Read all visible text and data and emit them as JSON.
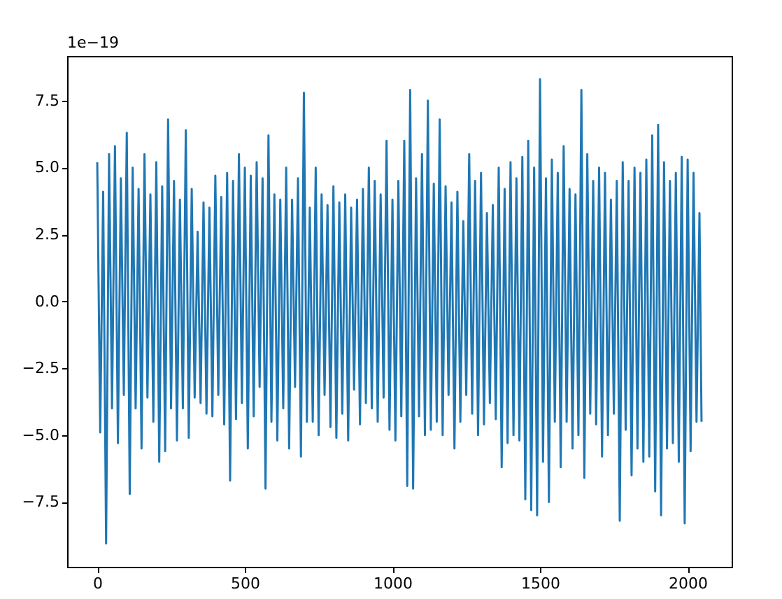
{
  "chart_data": {
    "type": "line",
    "grid": false,
    "marker": "none",
    "line_style": "solid",
    "xlim": [
      -102,
      2149
    ],
    "ylim": [
      -9.92,
      9.17
    ],
    "xticks": [
      0,
      500,
      1000,
      1500,
      2000
    ],
    "yticks": [
      {
        "value": -7.5,
        "label": "−7.5"
      },
      {
        "value": -5.0,
        "label": "−5.0"
      },
      {
        "value": -2.5,
        "label": "−2.5"
      },
      {
        "value": 0,
        "label": "0.0"
      },
      {
        "value": 2.5,
        "label": "2.5"
      },
      {
        "value": 5.0,
        "label": "5.0"
      },
      {
        "value": 7.5,
        "label": "7.5"
      }
    ],
    "annotations": [
      "1e−19"
    ],
    "x": [
      0,
      10,
      20,
      30,
      40,
      50,
      60,
      70,
      80,
      90,
      100,
      110,
      120,
      130,
      140,
      150,
      160,
      170,
      180,
      190,
      200,
      210,
      220,
      230,
      240,
      250,
      260,
      270,
      280,
      290,
      300,
      310,
      320,
      330,
      340,
      350,
      360,
      370,
      380,
      390,
      400,
      410,
      420,
      430,
      440,
      450,
      460,
      470,
      480,
      490,
      500,
      510,
      520,
      530,
      540,
      550,
      560,
      570,
      580,
      590,
      600,
      610,
      620,
      630,
      640,
      650,
      660,
      670,
      680,
      690,
      700,
      710,
      720,
      730,
      740,
      750,
      760,
      770,
      780,
      790,
      800,
      810,
      820,
      830,
      840,
      850,
      860,
      870,
      880,
      890,
      900,
      910,
      920,
      930,
      940,
      950,
      960,
      970,
      980,
      990,
      1000,
      1010,
      1020,
      1030,
      1040,
      1050,
      1060,
      1070,
      1080,
      1090,
      1100,
      1110,
      1120,
      1130,
      1140,
      1150,
      1160,
      1170,
      1180,
      1190,
      1200,
      1210,
      1220,
      1230,
      1240,
      1250,
      1260,
      1270,
      1280,
      1290,
      1300,
      1310,
      1320,
      1330,
      1340,
      1350,
      1360,
      1370,
      1380,
      1390,
      1400,
      1410,
      1420,
      1430,
      1440,
      1450,
      1460,
      1470,
      1480,
      1490,
      1500,
      1510,
      1520,
      1530,
      1540,
      1550,
      1560,
      1570,
      1580,
      1590,
      1600,
      1610,
      1620,
      1630,
      1640,
      1650,
      1660,
      1670,
      1680,
      1690,
      1700,
      1710,
      1720,
      1730,
      1740,
      1750,
      1760,
      1770,
      1780,
      1790,
      1800,
      1810,
      1820,
      1830,
      1840,
      1850,
      1860,
      1870,
      1880,
      1890,
      1900,
      1910,
      1920,
      1930,
      1940,
      1950,
      1960,
      1970,
      1980,
      1990,
      2000,
      2010,
      2020,
      2030,
      2040,
      2047
    ],
    "series": [
      {
        "color": "#1f77b4",
        "values": [
          5.2,
          -4.9,
          4.1,
          -9.05,
          5.5,
          -4.0,
          5.8,
          -5.3,
          4.6,
          -3.5,
          6.3,
          -7.2,
          5.0,
          -4.0,
          4.2,
          -5.5,
          5.5,
          -3.6,
          4.0,
          -4.5,
          5.2,
          -6.0,
          4.3,
          -5.6,
          6.8,
          -4.0,
          4.5,
          -5.2,
          3.8,
          -4.0,
          6.4,
          -5.1,
          4.2,
          -3.6,
          2.6,
          -3.8,
          3.7,
          -4.2,
          3.5,
          -4.3,
          4.7,
          -3.5,
          3.9,
          -4.6,
          4.8,
          -6.7,
          4.5,
          -4.4,
          5.5,
          -3.8,
          5.0,
          -5.5,
          4.7,
          -4.3,
          5.2,
          -3.2,
          4.6,
          -7.0,
          6.2,
          -4.5,
          4.0,
          -5.2,
          3.8,
          -4.0,
          5.0,
          -5.5,
          3.8,
          -3.2,
          4.6,
          -5.8,
          7.8,
          -4.5,
          3.5,
          -4.5,
          5.0,
          -5.0,
          4.0,
          -3.5,
          3.6,
          -4.7,
          4.3,
          -5.1,
          3.7,
          -4.2,
          4.0,
          -5.2,
          3.5,
          -3.3,
          3.8,
          -4.6,
          4.2,
          -3.8,
          5.0,
          -4.0,
          4.5,
          -4.5,
          4.0,
          -3.6,
          6.0,
          -4.8,
          3.8,
          -5.2,
          4.5,
          -4.3,
          6.0,
          -6.9,
          7.9,
          -7.0,
          4.6,
          -4.3,
          5.5,
          -5.0,
          7.5,
          -4.8,
          4.4,
          -4.5,
          6.8,
          -5.0,
          4.3,
          -3.5,
          3.7,
          -5.5,
          4.1,
          -4.5,
          3.0,
          -3.5,
          5.5,
          -4.2,
          4.5,
          -5.0,
          4.8,
          -4.6,
          3.3,
          -3.8,
          3.6,
          -4.4,
          5.0,
          -6.2,
          4.2,
          -5.3,
          5.2,
          -5.0,
          4.6,
          -5.2,
          5.4,
          -7.4,
          6.0,
          -7.8,
          5.0,
          -8.0,
          8.3,
          -6.0,
          4.6,
          -7.5,
          5.3,
          -4.5,
          4.8,
          -6.2,
          5.8,
          -4.5,
          4.2,
          -5.5,
          4.0,
          -5.0,
          7.9,
          -6.6,
          5.5,
          -4.2,
          4.5,
          -4.6,
          5.0,
          -5.8,
          4.8,
          -5.0,
          3.8,
          -4.2,
          4.5,
          -8.2,
          5.2,
          -4.8,
          4.5,
          -6.5,
          5.0,
          -5.5,
          4.8,
          -6.0,
          5.3,
          -5.8,
          6.2,
          -7.1,
          6.6,
          -8.0,
          5.2,
          -5.5,
          4.5,
          -5.3,
          4.8,
          -6.0,
          5.4,
          -8.3,
          5.3,
          -5.6,
          4.8,
          -4.5,
          3.3,
          -4.5
        ]
      }
    ]
  }
}
